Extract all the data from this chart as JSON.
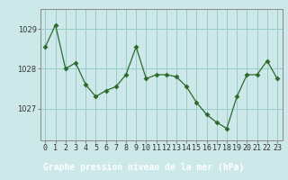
{
  "x": [
    0,
    1,
    2,
    3,
    4,
    5,
    6,
    7,
    8,
    9,
    10,
    11,
    12,
    13,
    14,
    15,
    16,
    17,
    18,
    19,
    20,
    21,
    22,
    23
  ],
  "y": [
    1028.55,
    1029.1,
    1028.0,
    1028.15,
    1027.6,
    1027.3,
    1027.45,
    1027.55,
    1027.85,
    1028.55,
    1027.75,
    1027.85,
    1027.85,
    1027.8,
    1027.55,
    1027.15,
    1026.85,
    1026.65,
    1026.5,
    1027.3,
    1027.85,
    1027.85,
    1028.2,
    1027.75
  ],
  "line_color": "#2d6a2d",
  "marker_color": "#2d6a2d",
  "plot_bg_color": "#cce8e8",
  "fig_bg_color": "#cce8e8",
  "xlabel_bg_color": "#4a7c4a",
  "xlabel_text_color": "#ffffff",
  "grid_color": "#99cccc",
  "axis_color": "#888888",
  "xlabel": "Graphe pression niveau de la mer (hPa)",
  "yticks": [
    1027,
    1028,
    1029
  ],
  "ylim": [
    1026.2,
    1029.5
  ],
  "xlim": [
    -0.5,
    23.5
  ],
  "xtick_labels": [
    "0",
    "1",
    "2",
    "3",
    "4",
    "5",
    "6",
    "7",
    "8",
    "9",
    "10",
    "11",
    "12",
    "13",
    "14",
    "15",
    "16",
    "17",
    "18",
    "19",
    "20",
    "21",
    "22",
    "23"
  ],
  "tick_fontsize": 6,
  "xlabel_fontsize": 7,
  "marker_size": 3
}
